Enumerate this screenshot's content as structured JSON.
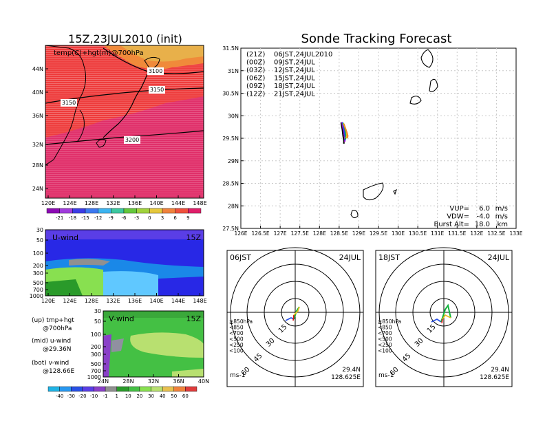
{
  "left": {
    "title": "15Z,23JUL2010 (init)",
    "map": {
      "label": "temp(C)+hgt(m)@700hPa",
      "lat_ticks": [
        "44N",
        "40N",
        "36N",
        "32N",
        "28N",
        "24N"
      ],
      "lon_ticks": [
        "120E",
        "124E",
        "128E",
        "132E",
        "136E",
        "140E",
        "144E",
        "148E"
      ],
      "contours": [
        "3100",
        "3150",
        "3150",
        "3200"
      ],
      "colorbar": [
        "-21",
        "-18",
        "-15",
        "-12",
        "-9",
        "-6",
        "-3",
        "0",
        "3",
        "6",
        "9"
      ],
      "colors": {
        "warm_red": "#f04040",
        "hot": "#e0306a",
        "orange": "#f08a3a",
        "yellow": "#e8b04a"
      }
    },
    "u_wind": {
      "label": "U-wind",
      "time": "15Z",
      "p_ticks": [
        "30",
        "50",
        "100",
        "200",
        "300",
        "500",
        "700",
        "1000"
      ],
      "lon_ticks": [
        "120E",
        "124E",
        "128E",
        "132E",
        "136E",
        "140E",
        "144E",
        "148E"
      ]
    },
    "v_wind": {
      "label": "V-wind",
      "time": "15Z",
      "p_ticks": [
        "30",
        "50",
        "100",
        "200",
        "300",
        "500",
        "700",
        "1000"
      ],
      "lat_ticks": [
        "24N",
        "28N",
        "32N",
        "36N",
        "40N"
      ]
    },
    "notes": [
      {
        "a": "(up) tmp+hgt",
        "b": "@700hPa"
      },
      {
        "a": "(mid) u-wind",
        "b": "@29.36N"
      },
      {
        "a": "(bot) v-wind",
        "b": "@128.66E"
      }
    ],
    "wind_colorbar": [
      "-40",
      "-30",
      "-20",
      "-10",
      "-1",
      "1",
      "10",
      "20",
      "30",
      "40",
      "50",
      "60"
    ]
  },
  "right": {
    "title": "Sonde Tracking Forecast",
    "legend": [
      {
        "code": "(21Z)",
        "time": "06JST,24JUL2010",
        "color": "#000000"
      },
      {
        "code": "(00Z)",
        "time": "09JST,24JUL",
        "color": "#a000c8"
      },
      {
        "code": "(03Z)",
        "time": "12JST,24JUL",
        "color": "#2850e6"
      },
      {
        "code": "(06Z)",
        "time": "15JST,24JUL",
        "color": "#10b43c"
      },
      {
        "code": "(09Z)",
        "time": "18JST,24JUL",
        "color": "#f0c020"
      },
      {
        "code": "(12Z)",
        "time": "21JST,24JUL",
        "color": "#f08a28"
      }
    ],
    "lat_ticks": [
      "31.5N",
      "31N",
      "30.5N",
      "30N",
      "29.5N",
      "29N",
      "28.5N",
      "28N",
      "27.5N"
    ],
    "lon_ticks": [
      "126E",
      "126.5E",
      "127E",
      "127.5E",
      "128E",
      "128.5E",
      "129E",
      "129.5E",
      "130E",
      "130.5E",
      "131E",
      "131.5E",
      "132E",
      "132.5E",
      "133E"
    ],
    "params": [
      {
        "label": "VUP=",
        "value": "6.0",
        "unit": "m/s"
      },
      {
        "label": "VDW=",
        "value": "-4.0",
        "unit": "m/s"
      },
      {
        "label": "Burst Alt=",
        "value": "18.0",
        "unit": "km"
      }
    ]
  },
  "polars": [
    {
      "time": "06JST",
      "date": "24JUL",
      "lat": "29.4N",
      "lon": "128.625E",
      "unit": "ms-1",
      "rings": [
        "15",
        "30",
        "45",
        "60"
      ]
    },
    {
      "time": "18JST",
      "date": "24JUL",
      "lat": "29.4N",
      "lon": "128.625E",
      "unit": "ms-1",
      "rings": [
        "15",
        "30",
        "45",
        "60"
      ]
    }
  ],
  "polar_legend": [
    {
      "label": "≧850hPa",
      "color": "#e01010"
    },
    {
      "label": "<850",
      "color": "#f08a28"
    },
    {
      "label": "<700",
      "color": "#e8c020"
    },
    {
      "label": "<500",
      "color": "#10b43c"
    },
    {
      "label": "<250",
      "color": "#20b4e6"
    },
    {
      "label": "<100",
      "color": "#2850e6"
    }
  ],
  "chart_data": [
    {
      "type": "line",
      "title": "Sonde Tracking Forecast",
      "xlim": [
        126,
        133
      ],
      "ylim": [
        27.5,
        31.5
      ],
      "series": [
        {
          "name": "(21Z) 06JST,24JUL2010",
          "x": [
            128.55,
            128.58,
            128.6,
            128.62,
            128.62
          ],
          "y": [
            29.85,
            29.7,
            29.55,
            29.45,
            29.38
          ]
        },
        {
          "name": "(00Z) 09JST,24JUL",
          "x": [
            128.57,
            128.6,
            128.63,
            128.65,
            128.64
          ],
          "y": [
            29.86,
            29.72,
            29.58,
            29.5,
            29.42
          ]
        },
        {
          "name": "(03Z) 12JST,24JUL",
          "x": [
            128.58,
            128.62,
            128.64,
            128.66,
            128.65
          ],
          "y": [
            29.85,
            29.74,
            29.6,
            29.52,
            29.45
          ]
        },
        {
          "name": "(06Z) 15JST,24JUL",
          "x": [
            128.6,
            128.64,
            128.67,
            128.68,
            128.66
          ],
          "y": [
            29.84,
            29.75,
            29.63,
            29.55,
            29.48
          ]
        },
        {
          "name": "(09Z) 18JST,24JUL",
          "x": [
            128.61,
            128.65,
            128.69,
            128.7,
            128.68
          ],
          "y": [
            29.83,
            29.74,
            29.64,
            29.56,
            29.5
          ]
        },
        {
          "name": "(12Z) 21JST,24JUL",
          "x": [
            128.62,
            128.66,
            128.7,
            128.72,
            128.7
          ],
          "y": [
            29.82,
            29.72,
            29.62,
            29.55,
            29.5
          ]
        }
      ]
    }
  ]
}
